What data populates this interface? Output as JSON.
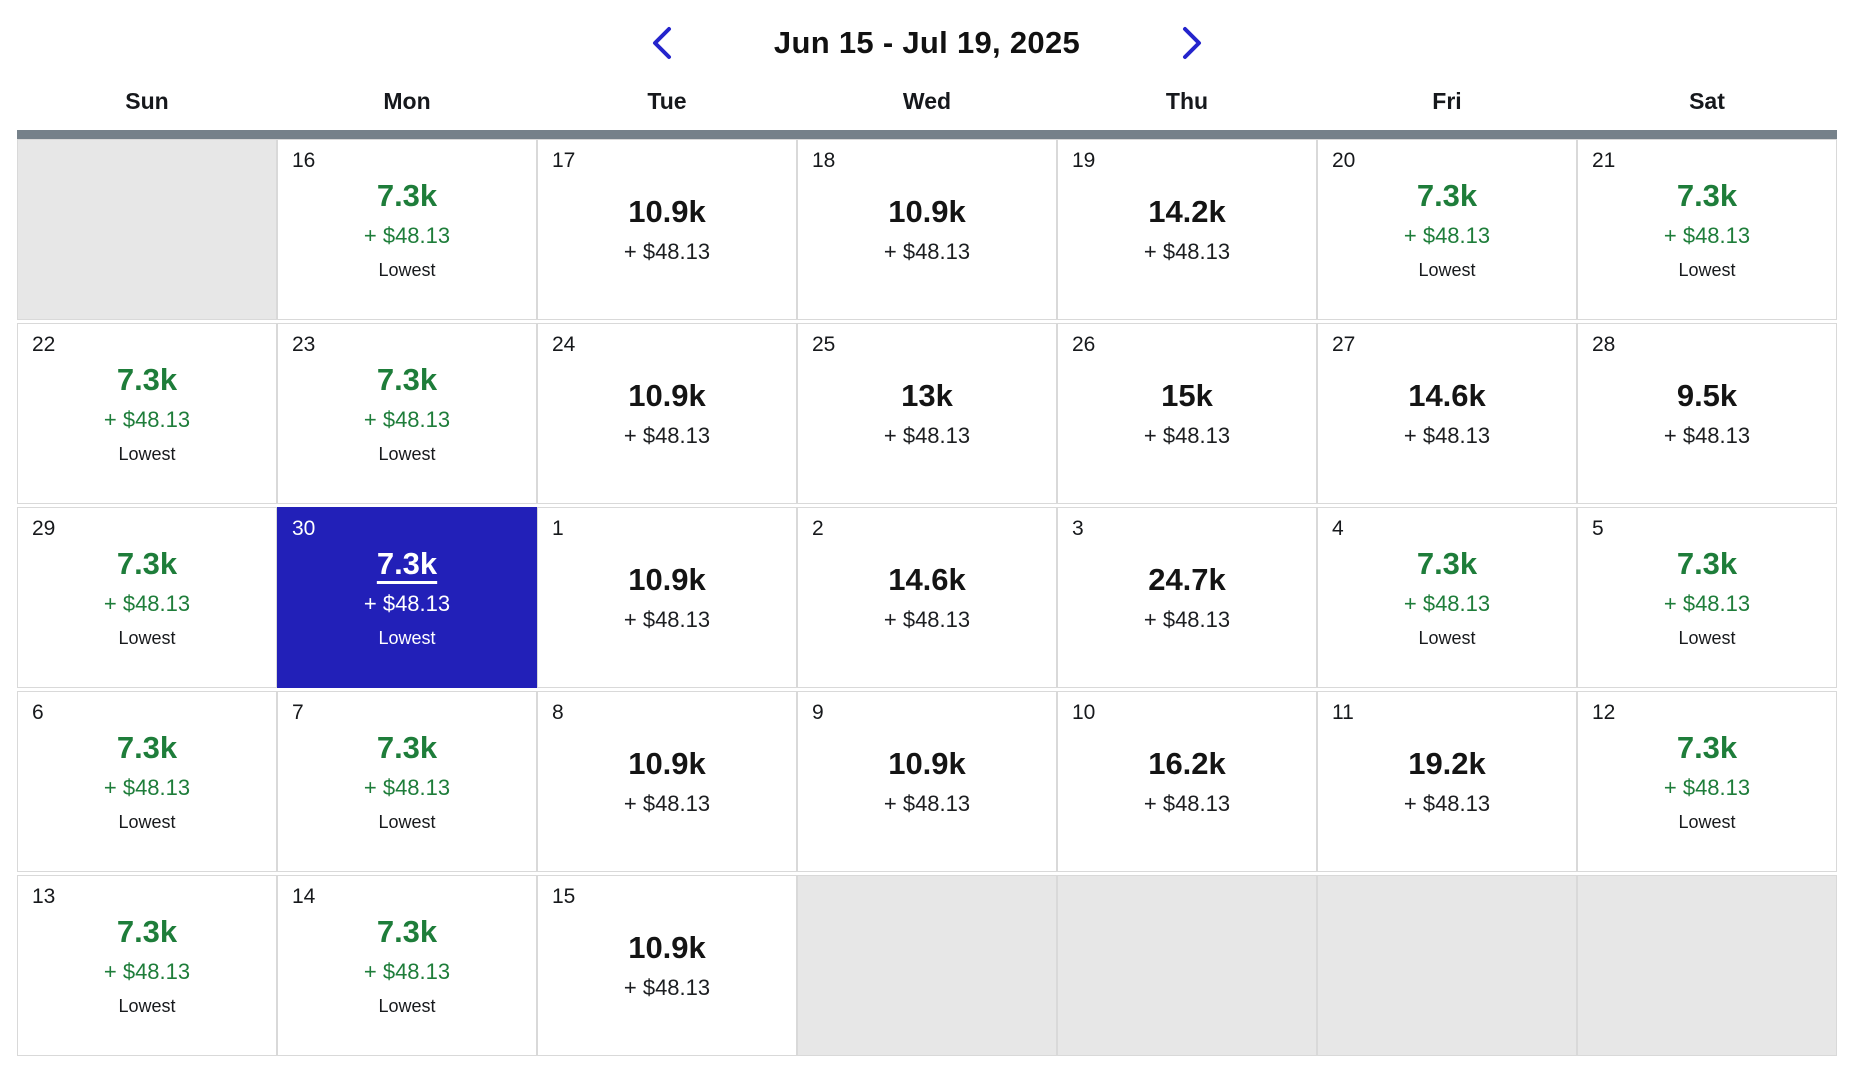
{
  "header": {
    "title": "Jun 15 - Jul 19, 2025",
    "prev_button": "previous-week-range",
    "next_button": "next-week-range"
  },
  "weekdays": [
    "Sun",
    "Mon",
    "Tue",
    "Wed",
    "Thu",
    "Fri",
    "Sat"
  ],
  "colors": {
    "lowest_green": "#1e7d3a",
    "selected_blue": "#2220b8",
    "chevron_blue": "#2424cc",
    "header_bar_gray": "#76818a",
    "empty_cell_gray": "#e7e7e7",
    "border_gray": "#d9d9d9"
  },
  "cells": [
    {
      "empty": true
    },
    {
      "day": "16",
      "points": "7.3k",
      "cash": "+ $48.13",
      "tag": "Lowest",
      "lowest": true
    },
    {
      "day": "17",
      "points": "10.9k",
      "cash": "+ $48.13"
    },
    {
      "day": "18",
      "points": "10.9k",
      "cash": "+ $48.13"
    },
    {
      "day": "19",
      "points": "14.2k",
      "cash": "+ $48.13"
    },
    {
      "day": "20",
      "points": "7.3k",
      "cash": "+ $48.13",
      "tag": "Lowest",
      "lowest": true
    },
    {
      "day": "21",
      "points": "7.3k",
      "cash": "+ $48.13",
      "tag": "Lowest",
      "lowest": true
    },
    {
      "day": "22",
      "points": "7.3k",
      "cash": "+ $48.13",
      "tag": "Lowest",
      "lowest": true
    },
    {
      "day": "23",
      "points": "7.3k",
      "cash": "+ $48.13",
      "tag": "Lowest",
      "lowest": true
    },
    {
      "day": "24",
      "points": "10.9k",
      "cash": "+ $48.13"
    },
    {
      "day": "25",
      "points": "13k",
      "cash": "+ $48.13"
    },
    {
      "day": "26",
      "points": "15k",
      "cash": "+ $48.13"
    },
    {
      "day": "27",
      "points": "14.6k",
      "cash": "+ $48.13"
    },
    {
      "day": "28",
      "points": "9.5k",
      "cash": "+ $48.13"
    },
    {
      "day": "29",
      "points": "7.3k",
      "cash": "+ $48.13",
      "tag": "Lowest",
      "lowest": true
    },
    {
      "day": "30",
      "points": "7.3k",
      "cash": "+ $48.13",
      "tag": "Lowest",
      "lowest": true,
      "selected": true
    },
    {
      "day": "1",
      "points": "10.9k",
      "cash": "+ $48.13"
    },
    {
      "day": "2",
      "points": "14.6k",
      "cash": "+ $48.13"
    },
    {
      "day": "3",
      "points": "24.7k",
      "cash": "+ $48.13"
    },
    {
      "day": "4",
      "points": "7.3k",
      "cash": "+ $48.13",
      "tag": "Lowest",
      "lowest": true
    },
    {
      "day": "5",
      "points": "7.3k",
      "cash": "+ $48.13",
      "tag": "Lowest",
      "lowest": true
    },
    {
      "day": "6",
      "points": "7.3k",
      "cash": "+ $48.13",
      "tag": "Lowest",
      "lowest": true
    },
    {
      "day": "7",
      "points": "7.3k",
      "cash": "+ $48.13",
      "tag": "Lowest",
      "lowest": true
    },
    {
      "day": "8",
      "points": "10.9k",
      "cash": "+ $48.13"
    },
    {
      "day": "9",
      "points": "10.9k",
      "cash": "+ $48.13"
    },
    {
      "day": "10",
      "points": "16.2k",
      "cash": "+ $48.13"
    },
    {
      "day": "11",
      "points": "19.2k",
      "cash": "+ $48.13"
    },
    {
      "day": "12",
      "points": "7.3k",
      "cash": "+ $48.13",
      "tag": "Lowest",
      "lowest": true
    },
    {
      "day": "13",
      "points": "7.3k",
      "cash": "+ $48.13",
      "tag": "Lowest",
      "lowest": true
    },
    {
      "day": "14",
      "points": "7.3k",
      "cash": "+ $48.13",
      "tag": "Lowest",
      "lowest": true
    },
    {
      "day": "15",
      "points": "10.9k",
      "cash": "+ $48.13"
    },
    {
      "empty": true
    },
    {
      "empty": true
    },
    {
      "empty": true
    },
    {
      "empty": true
    }
  ]
}
